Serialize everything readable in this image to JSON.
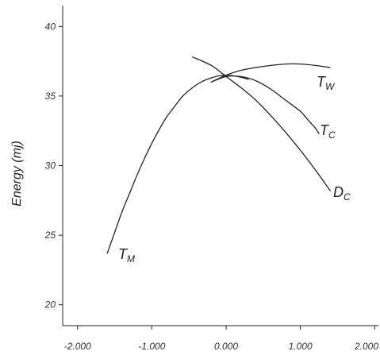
{
  "chart_data": {
    "type": "line",
    "title": "",
    "xlabel": "",
    "ylabel": "Energy (mj)",
    "xlim": [
      -2.2,
      2.05
    ],
    "ylim": [
      18.5,
      41.5
    ],
    "x_ticks": [
      -2,
      -1,
      0,
      1,
      2
    ],
    "x_tick_labels": [
      "-2.000",
      "-1.000",
      "0.000",
      "1.000",
      "2.000"
    ],
    "y_ticks": [
      20,
      25,
      30,
      35,
      40
    ],
    "y_tick_labels": [
      "20",
      "25",
      "30",
      "35",
      "40"
    ],
    "grid": false,
    "legend": "none",
    "series": [
      {
        "name": "TM",
        "label_main": "T",
        "label_sub": "M",
        "color": "#222222",
        "points": [
          [
            -1.6,
            23.7
          ],
          [
            -1.5,
            25.2
          ],
          [
            -1.4,
            26.7
          ],
          [
            -1.3,
            28.0
          ],
          [
            -1.2,
            29.3
          ],
          [
            -1.1,
            30.5
          ],
          [
            -1.0,
            31.6
          ],
          [
            -0.9,
            32.6
          ],
          [
            -0.8,
            33.5
          ],
          [
            -0.7,
            34.2
          ],
          [
            -0.6,
            34.9
          ],
          [
            -0.5,
            35.4
          ],
          [
            -0.4,
            35.8
          ],
          [
            -0.3,
            36.1
          ],
          [
            -0.2,
            36.3
          ],
          [
            -0.1,
            36.45
          ],
          [
            0.0,
            36.5
          ],
          [
            0.1,
            36.45
          ],
          [
            0.2,
            36.35
          ],
          [
            0.3,
            36.2
          ]
        ]
      },
      {
        "name": "TW",
        "label_main": "T",
        "label_sub": "W",
        "color": "#222222",
        "points": [
          [
            -0.2,
            36.0
          ],
          [
            0.0,
            36.5
          ],
          [
            0.2,
            36.85
          ],
          [
            0.4,
            37.05
          ],
          [
            0.6,
            37.2
          ],
          [
            0.8,
            37.3
          ],
          [
            1.0,
            37.3
          ],
          [
            1.2,
            37.2
          ],
          [
            1.4,
            37.05
          ]
        ]
      },
      {
        "name": "TC",
        "label_main": "T",
        "label_sub": "C",
        "color": "#222222",
        "points": [
          [
            -0.2,
            36.0
          ],
          [
            0.0,
            36.4
          ],
          [
            0.2,
            36.4
          ],
          [
            0.4,
            36.1
          ],
          [
            0.6,
            35.5
          ],
          [
            0.8,
            34.7
          ],
          [
            1.0,
            33.9
          ],
          [
            1.1,
            33.3
          ],
          [
            1.2,
            32.7
          ],
          [
            1.25,
            32.3
          ]
        ]
      },
      {
        "name": "DC",
        "label_main": "D",
        "label_sub": "C",
        "color": "#222222",
        "points": [
          [
            -0.45,
            37.8
          ],
          [
            -0.2,
            37.2
          ],
          [
            0.0,
            36.4
          ],
          [
            0.2,
            35.6
          ],
          [
            0.4,
            34.7
          ],
          [
            0.6,
            33.6
          ],
          [
            0.8,
            32.4
          ],
          [
            1.0,
            31.1
          ],
          [
            1.2,
            29.7
          ],
          [
            1.4,
            28.2
          ]
        ]
      }
    ]
  }
}
